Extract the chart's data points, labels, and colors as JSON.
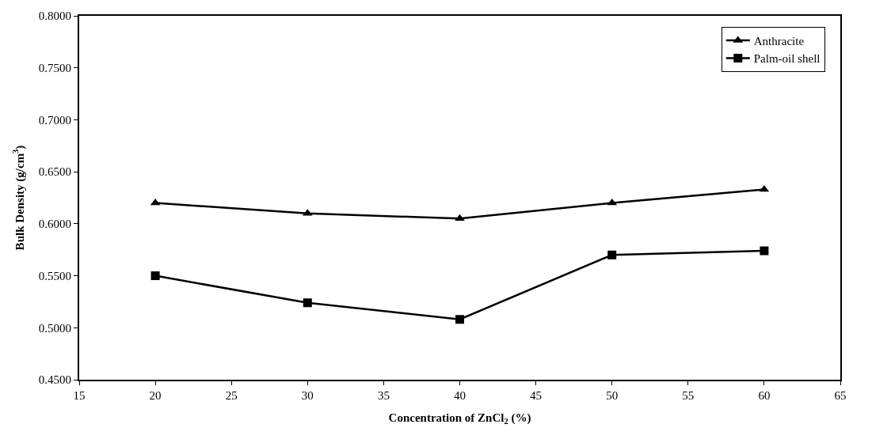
{
  "chart_data": {
    "type": "line",
    "xlabel": "Concentration of ZnCl$_{2}$ (%)",
    "ylabel": "Bulk Density (g/cm$^{3}$)",
    "x": [
      20,
      30,
      40,
      50,
      60
    ],
    "series": [
      {
        "name": "Anthracite",
        "color": "#000000",
        "marker": "triangle",
        "values": [
          0.62,
          0.61,
          0.605,
          0.62,
          0.633
        ]
      },
      {
        "name": "Palm-oil shell",
        "color": "#000000",
        "marker": "square",
        "values": [
          0.55,
          0.524,
          0.508,
          0.57,
          0.574
        ]
      }
    ],
    "xlim": [
      15,
      65
    ],
    "xticks": [
      15,
      20,
      25,
      30,
      35,
      40,
      45,
      50,
      55,
      60,
      65
    ],
    "ylim": [
      0.45,
      0.8
    ],
    "yticks": [
      {
        "value": 0.45,
        "label": "0.4500"
      },
      {
        "value": 0.5,
        "label": "0.5000"
      },
      {
        "value": 0.55,
        "label": "0.5500"
      },
      {
        "value": 0.6,
        "label": "0.6000"
      },
      {
        "value": 0.65,
        "label": "0.6500"
      },
      {
        "value": 0.7,
        "label": "0.7000"
      },
      {
        "value": 0.75,
        "label": "0.7500"
      },
      {
        "value": 0.8,
        "label": "0.8000"
      }
    ],
    "legend": "top right",
    "line_style": "solid"
  }
}
